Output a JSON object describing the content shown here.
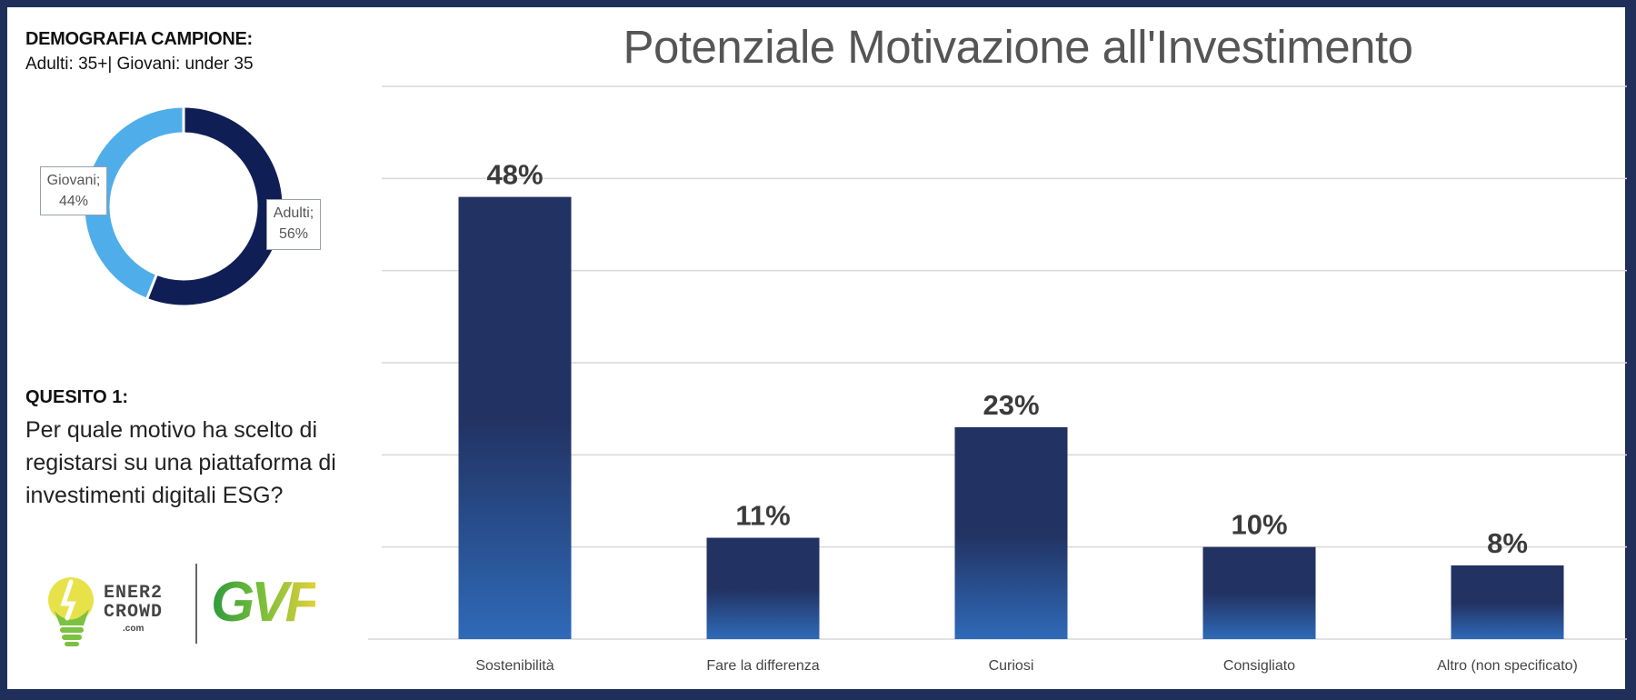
{
  "sidebar": {
    "demo_title": "DEMOGRAFIA CAMPIONE:",
    "demo_sub": "Adulti: 35+| Giovani: under 35",
    "donut": {
      "slices": [
        {
          "name": "Adulti",
          "label_line1": "Adulti;",
          "label_line2": "56%",
          "value": 56,
          "color": "#0f1f56"
        },
        {
          "name": "Giovani",
          "label_line1": "Giovani;",
          "label_line2": "44%",
          "value": 44,
          "color": "#4faeea"
        }
      ]
    },
    "question_title": "QUESITO 1:",
    "question_text": "Per quale motivo ha scelto di registarsi su una piattaforma di investimenti digitali ESG?",
    "logo_text_1": "ENER2",
    "logo_text_2": "CROWD",
    "logo_com": ".com",
    "logo_gvf": "GVF"
  },
  "chart_data": {
    "type": "bar",
    "title": "Potenziale Motivazione all'Investimento",
    "xlabel": "",
    "ylabel": "",
    "categories": [
      "Sostenibilità",
      "Fare la differenza",
      "Curiosi",
      "Consigliato",
      "Altro (non specificato)"
    ],
    "values": [
      48,
      11,
      23,
      10,
      8
    ],
    "value_labels": [
      "48%",
      "11%",
      "23%",
      "10%",
      "8%"
    ],
    "ylim": [
      0,
      60
    ],
    "grid": true,
    "colors": {
      "bar_top": "#223262",
      "bar_bottom": "#2f6ab8",
      "grid": "#d9d9d9",
      "label": "#3b3b3b"
    }
  }
}
